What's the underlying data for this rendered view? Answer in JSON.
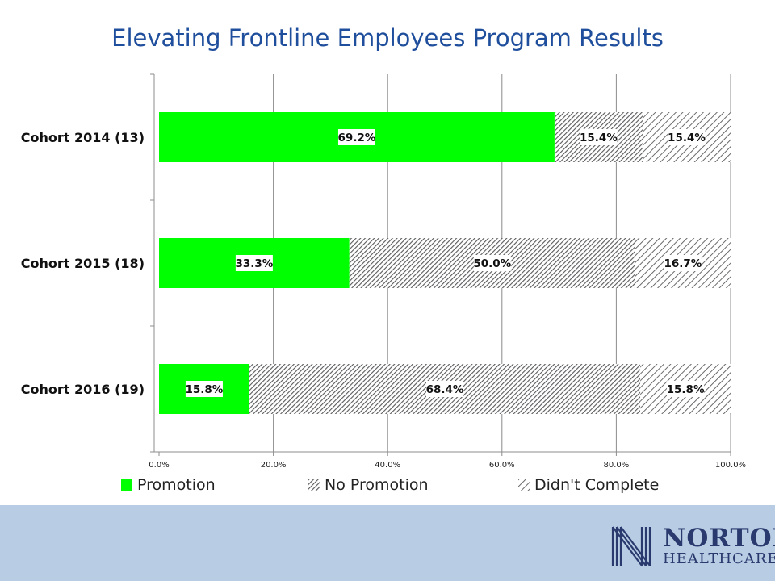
{
  "slide": {
    "title": "Elevating Frontline Employees Program Results"
  },
  "logo": {
    "name": "NORTON",
    "subtitle": "HEALTHCARE"
  },
  "colors": {
    "promotion": "#00ff00",
    "hatch": "#58595b",
    "title": "#1f4e9c",
    "footer": "#b8cce4"
  },
  "chart_data": {
    "type": "bar",
    "orientation": "horizontal",
    "stacked": true,
    "categories": [
      "Cohort 2014 (13)",
      "Cohort 2015 (18)",
      "Cohort 2016 (19)"
    ],
    "series": [
      {
        "name": "Promotion",
        "values": [
          69.2,
          33.3,
          15.8
        ],
        "labels": [
          "69.2%",
          "33.3%",
          "15.8%"
        ],
        "pattern": "solid"
      },
      {
        "name": "No Promotion",
        "values": [
          15.4,
          50.0,
          68.4
        ],
        "labels": [
          "15.4%",
          "50.0%",
          "68.4%"
        ],
        "pattern": "dense-diagonal"
      },
      {
        "name": "Didn't Complete",
        "values": [
          15.4,
          16.7,
          15.8
        ],
        "labels": [
          "15.4%",
          "16.7%",
          "15.8%"
        ],
        "pattern": "wide-diagonal"
      }
    ],
    "xlim": [
      0,
      100
    ],
    "x_ticks": [
      "0.0%",
      "20.0%",
      "40.0%",
      "60.0%",
      "80.0%",
      "100.0%"
    ],
    "grid": true,
    "legend": "bottom"
  }
}
